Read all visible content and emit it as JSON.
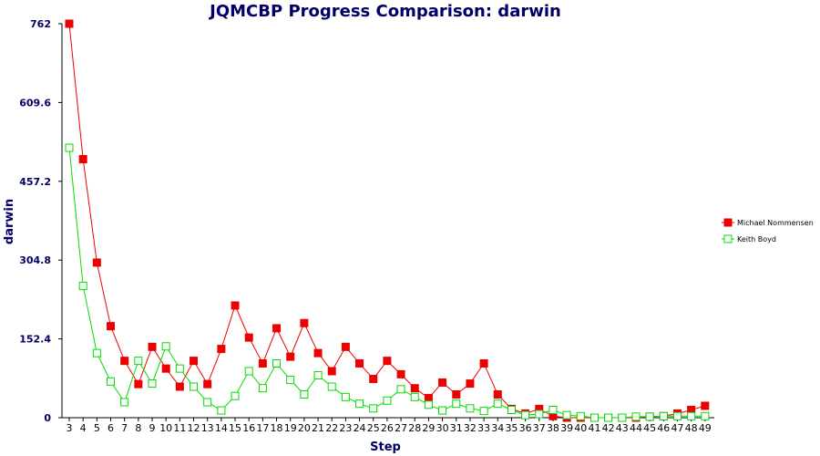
{
  "chart_data": {
    "type": "line",
    "title": "JQMCBP Progress Comparison: darwin",
    "xlabel": "Step",
    "ylabel": "darwin",
    "ylim": [
      0,
      762
    ],
    "yticks": [
      "0",
      "152.4",
      "304.8",
      "457.2",
      "609.6",
      "762"
    ],
    "x": [
      3,
      4,
      5,
      6,
      7,
      8,
      9,
      10,
      11,
      12,
      13,
      14,
      15,
      16,
      17,
      18,
      19,
      20,
      21,
      22,
      23,
      24,
      25,
      26,
      27,
      28,
      29,
      30,
      31,
      32,
      33,
      34,
      35,
      36,
      37,
      38,
      39,
      40,
      41,
      42,
      43,
      44,
      45,
      46,
      47,
      48,
      49
    ],
    "legend_position": "right",
    "grid": false,
    "series": [
      {
        "name": "Michael Nommensen",
        "color": "#ee0000",
        "marker": "filled-square",
        "values": [
          762,
          500,
          300,
          177,
          110,
          65,
          137,
          95,
          60,
          110,
          65,
          133,
          217,
          155,
          105,
          173,
          118,
          183,
          125,
          90,
          137,
          105,
          75,
          110,
          84,
          57,
          38,
          68,
          45,
          66,
          105,
          45,
          17,
          8,
          17,
          3,
          0,
          0,
          0,
          0,
          0,
          0,
          2,
          3,
          8,
          15,
          23
        ]
      },
      {
        "name": "Keith Boyd",
        "color": "#00dd00",
        "marker": "hollow-square",
        "values": [
          522,
          255,
          125,
          70,
          30,
          110,
          66,
          138,
          95,
          60,
          30,
          14,
          42,
          90,
          57,
          105,
          73,
          45,
          82,
          60,
          40,
          27,
          18,
          33,
          55,
          40,
          25,
          14,
          27,
          18,
          13,
          27,
          15,
          5,
          7,
          15,
          5,
          3,
          0,
          0,
          0,
          2,
          2,
          3,
          3,
          3,
          3
        ]
      }
    ]
  }
}
